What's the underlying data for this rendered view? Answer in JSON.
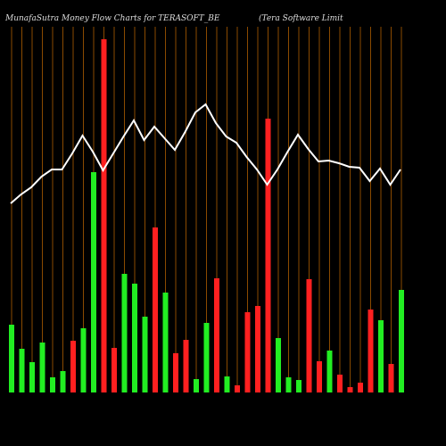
{
  "chart_data": {
    "type": "bar",
    "title": "MunafaSutra  Money Flow  Charts for TERASOFT_BE",
    "subtitle": "(Tera  Software   Limit",
    "ylim": [
      0,
      400
    ],
    "values": [
      76,
      49,
      34,
      56,
      17,
      24,
      58,
      72,
      247,
      396,
      50,
      133,
      122,
      85,
      185,
      112,
      44,
      59,
      15,
      78,
      128,
      18,
      8,
      90,
      97,
      307,
      61,
      17,
      14,
      127,
      35,
      47,
      20,
      6,
      11,
      93,
      81,
      32,
      115
    ],
    "colors": [
      "#22ee22",
      "#22ee22",
      "#22ee22",
      "#22ee22",
      "#22ee22",
      "#22ee22",
      "#ff2020",
      "#22ee22",
      "#22ee22",
      "#ff2020",
      "#ff2020",
      "#22ee22",
      "#22ee22",
      "#22ee22",
      "#ff2020",
      "#22ee22",
      "#ff2020",
      "#ff2020",
      "#22ee22",
      "#22ee22",
      "#ff2020",
      "#22ee22",
      "#ff2020",
      "#ff2020",
      "#ff2020",
      "#ff2020",
      "#22ee22",
      "#22ee22",
      "#22ee22",
      "#ff2020",
      "#ff2020",
      "#22ee22",
      "#ff2020",
      "#ff2020",
      "#ff2020",
      "#ff2020",
      "#22ee22",
      "#ff2020",
      "#22ee22"
    ],
    "line": {
      "color": "#ffffff",
      "values": [
        212,
        222,
        230,
        242,
        250,
        250,
        268,
        288,
        270,
        249,
        268,
        287,
        305,
        283,
        298,
        285,
        272,
        292,
        314,
        323,
        302,
        287,
        280,
        264,
        250,
        233,
        250,
        270,
        289,
        273,
        259,
        260,
        257,
        253,
        252,
        237,
        251,
        233,
        250
      ]
    },
    "grid_color": "#8a4a00"
  }
}
